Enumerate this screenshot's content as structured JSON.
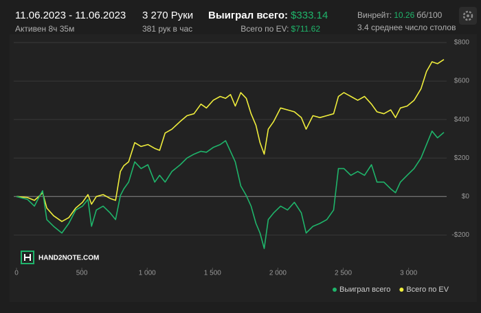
{
  "header": {
    "date_range": "11.06.2023 - 11.06.2023",
    "active": "Активен 8ч 35м",
    "hands": "3 270 Руки",
    "hands_per_hour": "381 рук в час",
    "won_label": "Выиграл всего:",
    "won_value": "$333.14",
    "ev_label": "Всего по EV:",
    "ev_value": "$711.62",
    "winrate_label": "Винрейт:",
    "winrate_value": "10.26",
    "winrate_unit": "бб/100",
    "tables": "3.4 среднее число столов"
  },
  "chart_data": {
    "type": "line",
    "watermark": "HAND2NOTE.COM",
    "x": [
      0,
      84,
      137,
      179,
      200,
      232,
      284,
      347,
      400,
      453,
      505,
      547,
      574,
      611,
      663,
      716,
      758,
      795,
      821,
      858,
      905,
      953,
      1005,
      1058,
      1095,
      1137,
      1189,
      1253,
      1305,
      1358,
      1411,
      1453,
      1505,
      1558,
      1600,
      1637,
      1674,
      1716,
      1758,
      1795,
      1832,
      1863,
      1895,
      1926,
      1968,
      2021,
      2074,
      2126,
      2179,
      2216,
      2268,
      2321,
      2374,
      2426,
      2463,
      2505,
      2558,
      2611,
      2663,
      2716,
      2758,
      2811,
      2863,
      2900,
      2937,
      2989,
      3042,
      3095,
      3137,
      3179,
      3221,
      3270
    ],
    "series": [
      {
        "name": "Выиграл всего",
        "color": "#1fb56b",
        "values": [
          0,
          -15,
          -50,
          5,
          30,
          -120,
          -155,
          -190,
          -140,
          -70,
          -50,
          -15,
          -155,
          -70,
          -50,
          -85,
          -120,
          5,
          40,
          75,
          180,
          145,
          165,
          75,
          110,
          75,
          130,
          165,
          200,
          220,
          235,
          230,
          255,
          270,
          290,
          235,
          180,
          55,
          5,
          -50,
          -140,
          -190,
          -270,
          -120,
          -85,
          -50,
          -70,
          -30,
          -85,
          -190,
          -155,
          -140,
          -120,
          -70,
          145,
          145,
          110,
          130,
          110,
          165,
          75,
          75,
          40,
          20,
          75,
          110,
          145,
          200,
          270,
          340,
          305,
          333
        ]
      },
      {
        "name": "Всего по EV",
        "color": "#f0ee3c",
        "values": [
          0,
          -5,
          -20,
          5,
          20,
          -60,
          -100,
          -130,
          -110,
          -60,
          -30,
          10,
          -40,
          0,
          10,
          -10,
          -20,
          130,
          160,
          180,
          280,
          260,
          270,
          250,
          240,
          330,
          350,
          390,
          420,
          430,
          480,
          460,
          500,
          520,
          510,
          530,
          470,
          540,
          510,
          430,
          370,
          280,
          220,
          350,
          390,
          460,
          450,
          440,
          410,
          350,
          420,
          410,
          420,
          430,
          520,
          540,
          520,
          500,
          520,
          480,
          440,
          430,
          450,
          410,
          460,
          470,
          500,
          560,
          650,
          700,
          690,
          712
        ]
      }
    ],
    "xlim": [
      0,
      3270
    ],
    "xticks": [
      0,
      500,
      {
        "value": 1000,
        "label": "1 000"
      },
      {
        "value": 1500,
        "label": "1 500"
      },
      {
        "value": 2000,
        "label": "2 000"
      },
      {
        "value": 2500,
        "label": "2 500"
      },
      {
        "value": 3000,
        "label": "3 000"
      }
    ],
    "ylim": [
      -370,
      825
    ],
    "yticks": [
      {
        "value": -200,
        "label": "-$200"
      },
      {
        "value": 0,
        "label": "$0"
      },
      {
        "value": 200,
        "label": "$200"
      },
      {
        "value": 400,
        "label": "$400"
      },
      {
        "value": 600,
        "label": "$600"
      },
      {
        "value": 800,
        "label": "$800"
      }
    ],
    "grid": true,
    "legend": "bottom-right"
  }
}
